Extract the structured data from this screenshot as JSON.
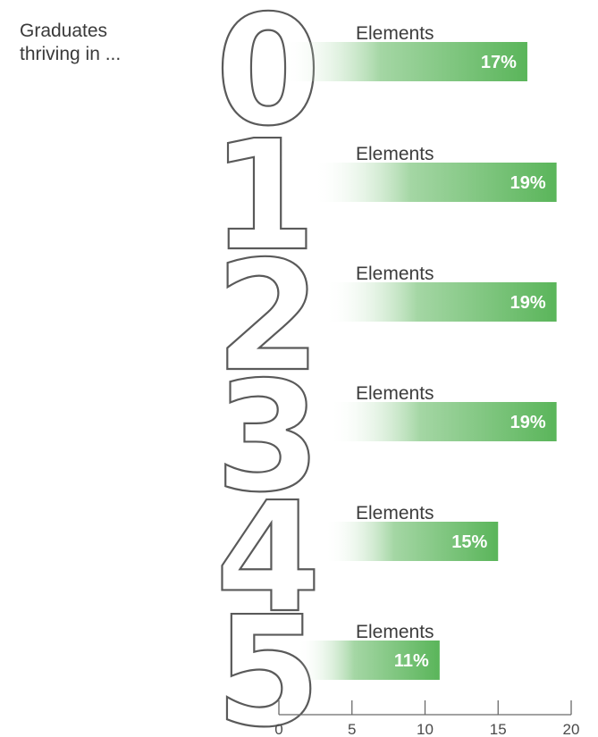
{
  "lead_text": [
    "Graduates",
    "thriving in ..."
  ],
  "chart_data": {
    "type": "bar",
    "orientation": "horizontal",
    "categories": [
      "0",
      "1",
      "2",
      "3",
      "4",
      "5"
    ],
    "category_suffix": "Elements",
    "values": [
      17,
      19,
      19,
      19,
      15,
      11
    ],
    "value_labels": [
      "17%",
      "19%",
      "19%",
      "19%",
      "15%",
      "11%"
    ],
    "xlim": [
      0,
      20
    ],
    "xticks": [
      0,
      5,
      10,
      15,
      20
    ],
    "xtick_labels": [
      "0",
      "5",
      "10",
      "15",
      "20"
    ],
    "grid": false,
    "colors": {
      "bar": "#5ab55a",
      "bar_fade": "#ffffff",
      "digit_stroke": "#5a5a5a"
    }
  }
}
